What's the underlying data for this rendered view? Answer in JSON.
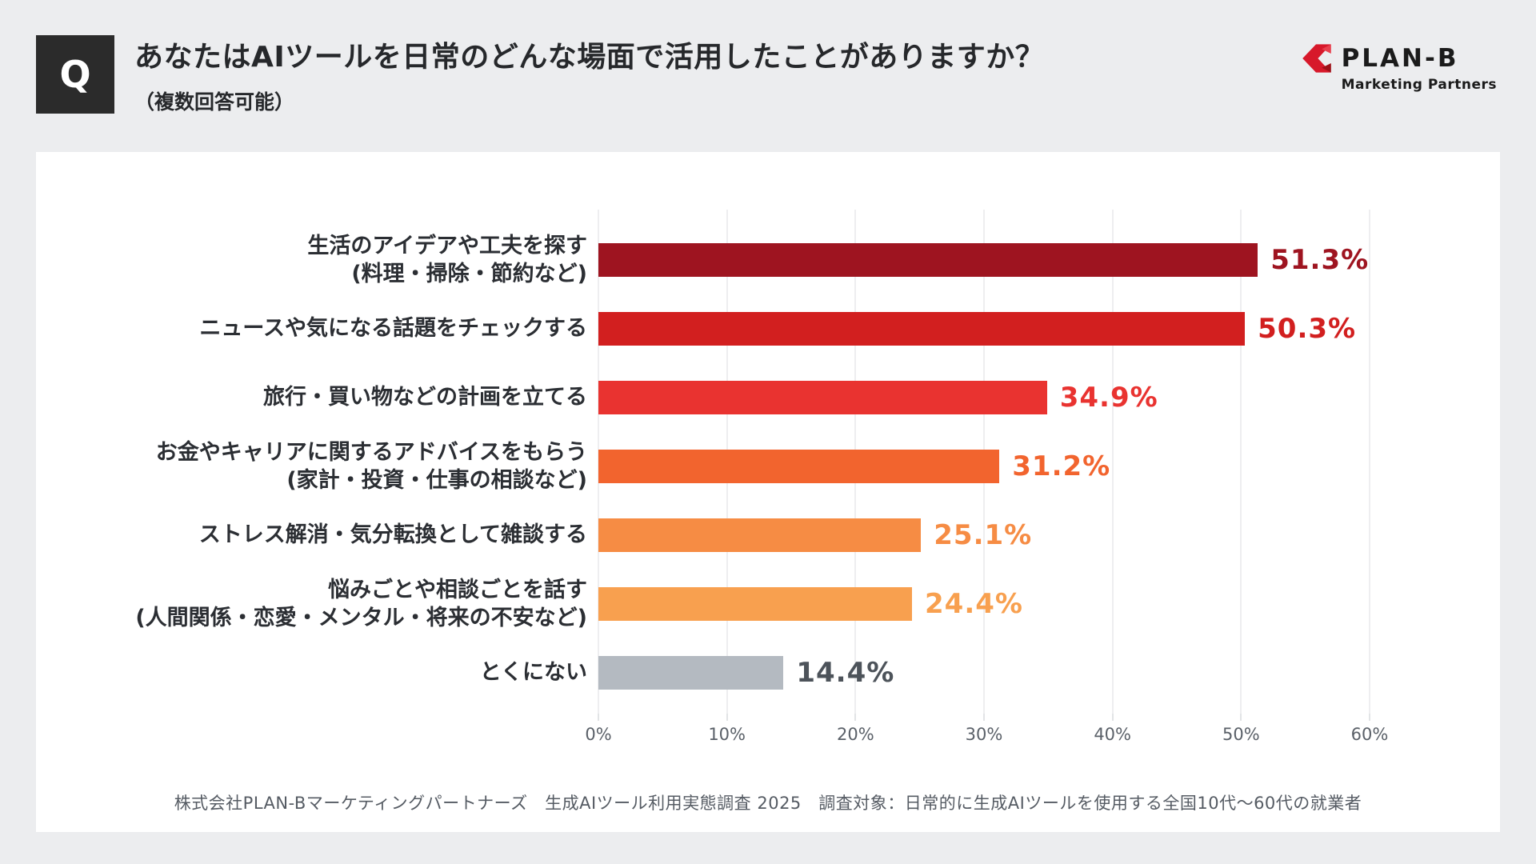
{
  "header": {
    "q_mark": "Q",
    "title": "あなたはAIツールを日常のどんな場面で活用したことがありますか？",
    "subtitle": "（複数回答可能）",
    "logo": {
      "name": "PLAN-B",
      "tagline": "Marketing Partners",
      "accent_color": "#d7182a",
      "accent_dark": "#9e1018"
    }
  },
  "chart_data": {
    "type": "bar",
    "orientation": "horizontal",
    "title": "あなたはAIツールを日常のどんな場面で活用したことがありますか？（複数回答可能）",
    "xlabel": "",
    "ylabel": "",
    "xlim": [
      0,
      60
    ],
    "x_ticks": [
      "0%",
      "10%",
      "20%",
      "30%",
      "40%",
      "50%",
      "60%"
    ],
    "grid": true,
    "bars": [
      {
        "label": "生活のアイデアや工夫を探す",
        "sublabel": "(料理・掃除・節約など)",
        "value": 51.3,
        "value_label": "51.3%",
        "color": "#9e1420",
        "value_color": "#9e1420"
      },
      {
        "label": "ニュースや気になる話題をチェックする",
        "sublabel": "",
        "value": 50.3,
        "value_label": "50.3%",
        "color": "#d21f1f",
        "value_color": "#d21f1f"
      },
      {
        "label": "旅行・買い物などの計画を立てる",
        "sublabel": "",
        "value": 34.9,
        "value_label": "34.9%",
        "color": "#e93330",
        "value_color": "#e93330"
      },
      {
        "label": "お金やキャリアに関するアドバイスをもらう",
        "sublabel": "(家計・投資・仕事の相談など)",
        "value": 31.2,
        "value_label": "31.2%",
        "color": "#f2642e",
        "value_color": "#f2642e"
      },
      {
        "label": "ストレス解消・気分転換として雑談する",
        "sublabel": "",
        "value": 25.1,
        "value_label": "25.1%",
        "color": "#f68c44",
        "value_color": "#f68c44"
      },
      {
        "label": "悩みごとや相談ごとを話す",
        "sublabel": "(人間関係・恋愛・メンタル・将来の不安など)",
        "value": 24.4,
        "value_label": "24.4%",
        "color": "#f8a04f",
        "value_color": "#f8a04f"
      },
      {
        "label": "とくにない",
        "sublabel": "",
        "value": 14.4,
        "value_label": "14.4%",
        "color": "#b4bac1",
        "value_color": "#4d535a"
      }
    ],
    "source_note": "株式会社PLAN-Bマーケティングパートナーズ　生成AIツール利用実態調査 2025　調査対象：日常的に生成AIツールを使用する全国10代～60代の就業者"
  }
}
